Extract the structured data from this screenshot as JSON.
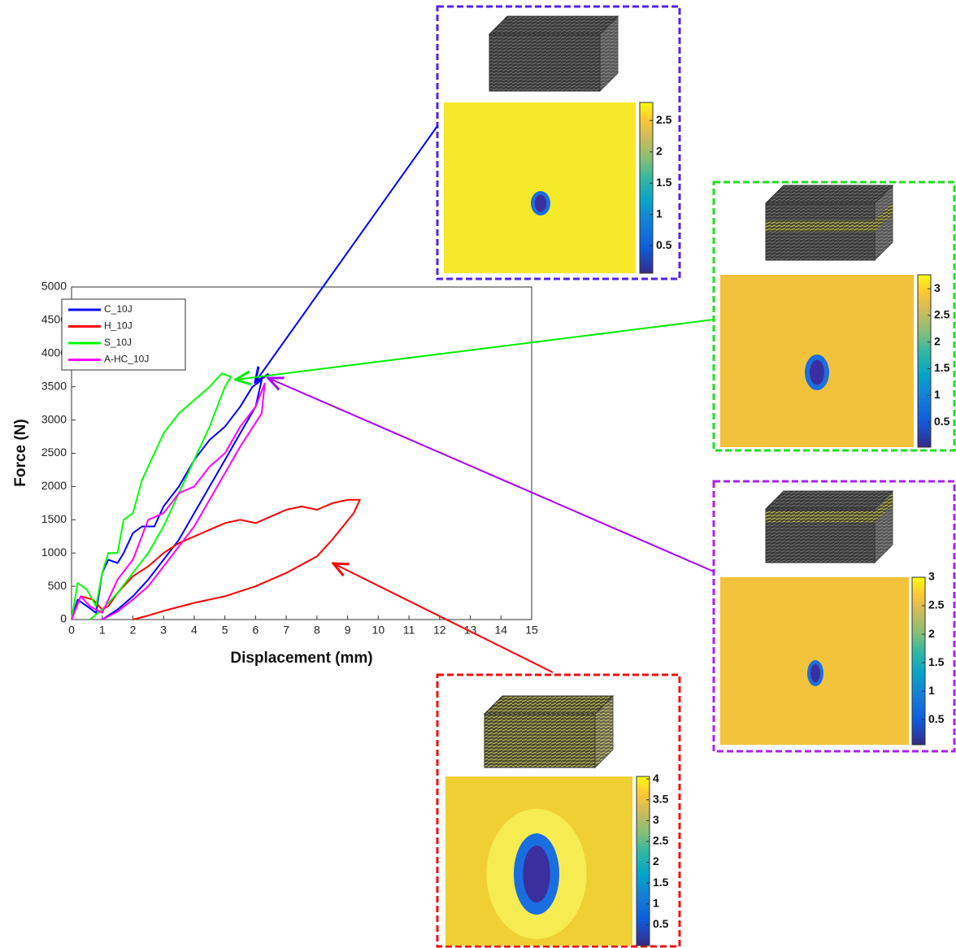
{
  "chart_data": [
    {
      "type": "line",
      "xlabel": "Displacement (mm)",
      "ylabel": "Force (N)",
      "xlim": [
        0,
        15
      ],
      "xticks": [
        0,
        1,
        2,
        3,
        4,
        5,
        6,
        7,
        8,
        9,
        10,
        11,
        12,
        13,
        14,
        15
      ],
      "ylim": [
        0,
        5000
      ],
      "yticks": [
        0,
        500,
        1000,
        1500,
        2000,
        2500,
        3000,
        3500,
        4000,
        4500,
        5000
      ],
      "legend": "upper left",
      "series": [
        {
          "name": "C_10J",
          "color": "#0000ff",
          "x": [
            0,
            0.2,
            0.5,
            0.8,
            1,
            1.2,
            1.5,
            1.7,
            2,
            2.3,
            2.7,
            3,
            3.5,
            4,
            4.5,
            5,
            5.5,
            5.9,
            6.2,
            6.0,
            5.5,
            5,
            4.5,
            4,
            3.5,
            3,
            2.5,
            2,
            1.5,
            1
          ],
          "values": [
            0,
            300,
            200,
            100,
            700,
            900,
            850,
            1000,
            1300,
            1400,
            1400,
            1700,
            2000,
            2400,
            2700,
            2900,
            3200,
            3500,
            3600,
            3200,
            2800,
            2400,
            2000,
            1600,
            1200,
            900,
            600,
            350,
            150,
            0
          ]
        },
        {
          "name": "H_10J",
          "color": "#ff0000",
          "x": [
            0,
            0.3,
            0.7,
            1,
            1.2,
            1.5,
            2,
            2.5,
            3,
            3.5,
            4,
            4.5,
            5,
            5.5,
            6,
            6.5,
            7,
            7.5,
            8,
            8.5,
            9,
            9.4,
            9.2,
            8.5,
            8,
            7,
            6,
            5,
            4,
            3,
            2.5,
            2
          ],
          "values": [
            0,
            350,
            300,
            150,
            200,
            400,
            650,
            800,
            1000,
            1150,
            1250,
            1350,
            1450,
            1500,
            1450,
            1550,
            1650,
            1700,
            1650,
            1750,
            1800,
            1800,
            1600,
            1200,
            950,
            700,
            500,
            350,
            250,
            130,
            60,
            0
          ]
        },
        {
          "name": "S_10J",
          "color": "#00ff00",
          "x": [
            0,
            0.2,
            0.5,
            0.8,
            1,
            1.2,
            1.5,
            1.7,
            2,
            2.3,
            2.5,
            3,
            3.5,
            4,
            4.5,
            4.9,
            5.2,
            5,
            4.5,
            4,
            3.5,
            3,
            2.5,
            2,
            1.5,
            1,
            0.6
          ],
          "values": [
            0,
            550,
            450,
            200,
            700,
            1000,
            1000,
            1500,
            1600,
            2100,
            2300,
            2800,
            3100,
            3300,
            3500,
            3700,
            3650,
            3500,
            2900,
            2400,
            1900,
            1400,
            1000,
            700,
            400,
            150,
            0
          ]
        },
        {
          "name": "A-HC_10J",
          "color": "#ff00ff",
          "x": [
            0,
            0.3,
            0.6,
            1,
            1.5,
            2,
            2.5,
            3,
            3.5,
            4,
            4.5,
            5,
            5.5,
            6,
            6.3,
            6.2,
            5.5,
            5,
            4.5,
            4,
            3.5,
            3,
            2.5,
            2,
            1.5,
            1
          ],
          "values": [
            0,
            350,
            200,
            100,
            600,
            900,
            1500,
            1600,
            1900,
            2000,
            2300,
            2500,
            2900,
            3200,
            3550,
            3100,
            2600,
            2200,
            1800,
            1400,
            1100,
            800,
            500,
            300,
            120,
            0
          ]
        }
      ]
    },
    {
      "type": "heatmap",
      "ylim": [
        0.06,
        2.79
      ],
      "yticks": [
        0.5,
        1,
        1.5,
        2,
        2.5
      ]
    },
    {
      "type": "heatmap",
      "ylim": [
        0.03,
        3.26
      ],
      "yticks": [
        0.5,
        1,
        1.5,
        2,
        2.5,
        3
      ]
    },
    {
      "type": "heatmap",
      "ylim": [
        0.06,
        3
      ],
      "yticks": [
        0.5,
        1,
        1.5,
        2,
        2.5,
        3
      ]
    },
    {
      "type": "heatmap",
      "ylim": [
        0,
        4.06
      ],
      "yticks": [
        0.5,
        1,
        1.5,
        2,
        2.5,
        3,
        3.5,
        4
      ]
    }
  ]
}
